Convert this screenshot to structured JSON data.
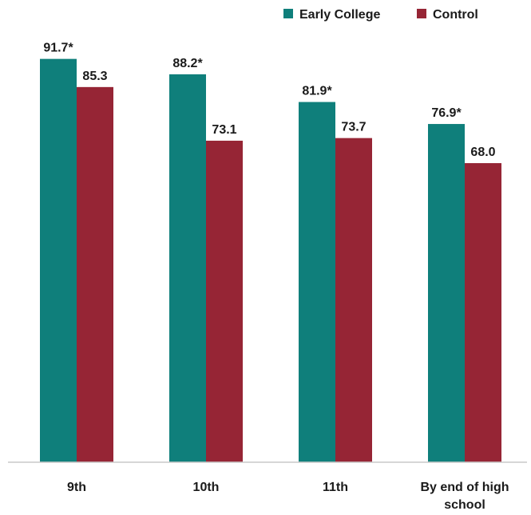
{
  "chart_data": {
    "type": "bar",
    "categories": [
      "9th",
      "10th",
      "11th",
      "By end of high school"
    ],
    "category_lines": [
      [
        "9th"
      ],
      [
        "10th"
      ],
      [
        "11th"
      ],
      [
        "By end of high",
        "school"
      ]
    ],
    "series": [
      {
        "name": "Early College",
        "color": "#0f7f7b",
        "values": [
          91.7,
          88.2,
          81.9,
          76.9
        ],
        "labels": [
          "91.7*",
          "88.2*",
          "81.9*",
          "76.9*"
        ]
      },
      {
        "name": "Control",
        "color": "#962535",
        "values": [
          85.3,
          73.1,
          73.7,
          68.0
        ],
        "labels": [
          "85.3",
          "73.1",
          "73.7",
          "68.0"
        ]
      }
    ],
    "ylim": [
      0,
      100
    ],
    "grid": false,
    "legend_position": "top-right",
    "title": "",
    "xlabel": "",
    "ylabel": ""
  }
}
